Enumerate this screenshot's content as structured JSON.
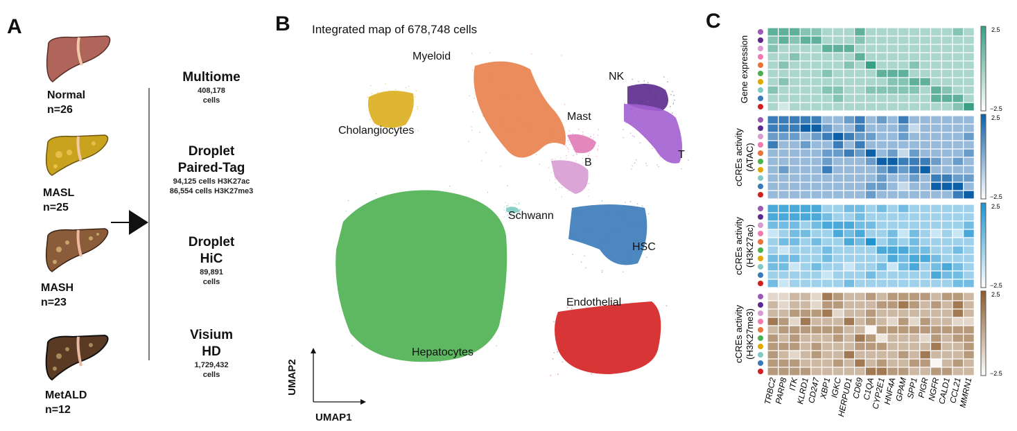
{
  "panel_a": {
    "letter": "A",
    "conditions": [
      {
        "name": "Normal",
        "n": "n=26",
        "color": "#b0655a"
      },
      {
        "name": "MASL",
        "n": "n=25",
        "color": "#c9a21e"
      },
      {
        "name": "MASH",
        "n": "n=23",
        "color": "#8a5c3a"
      },
      {
        "name": "MetALD",
        "n": "n=12",
        "color": "#5a3a22"
      }
    ],
    "methods": [
      {
        "title": "Multiome",
        "lines": [
          "408,178",
          "cells"
        ]
      },
      {
        "title": "Droplet Paired-Tag",
        "title_lines": [
          "Droplet",
          "Paired-Tag"
        ],
        "lines": [
          "94,125 cells H3K27ac",
          "86,554 cells H3K27me3"
        ]
      },
      {
        "title": "Droplet HiC",
        "title_lines": [
          "Droplet",
          "HiC"
        ],
        "lines": [
          "89,891",
          "cells"
        ]
      },
      {
        "title": "Visium HD",
        "title_lines": [
          "Visium",
          "HD"
        ],
        "lines": [
          "1,729,432",
          "cells"
        ]
      }
    ]
  },
  "panel_b": {
    "letter": "B",
    "title": "Integrated map of 678,748 cells",
    "xlabel": "UMAP1",
    "ylabel": "UMAP2",
    "clusters": [
      {
        "name": "Hepatocytes",
        "color": "#4caf50"
      },
      {
        "name": "Myeloid",
        "color": "#e8804a"
      },
      {
        "name": "Cholangiocytes",
        "color": "#dcae1d"
      },
      {
        "name": "NK",
        "color": "#5b2a8c"
      },
      {
        "name": "T",
        "color": "#a35fd0"
      },
      {
        "name": "Mast",
        "color": "#e07ab5"
      },
      {
        "name": "B",
        "color": "#d79bd0"
      },
      {
        "name": "Schwann",
        "color": "#7fcbc4"
      },
      {
        "name": "HSC",
        "color": "#3a7ab8"
      },
      {
        "name": "Endothelial",
        "color": "#d42020"
      }
    ]
  },
  "panel_c": {
    "letter": "C",
    "row_colors": [
      "#9b59b6",
      "#5b2a8c",
      "#d79bd0",
      "#ee7ab0",
      "#e8743b",
      "#4caf50",
      "#e0a800",
      "#7fcbc4",
      "#3a7ab8",
      "#d02020"
    ],
    "genes": [
      "TRBC2",
      "PARP8",
      "ITK",
      "KLRD1",
      "CD247",
      "XBP1",
      "IGKC",
      "HERPUD1",
      "CD69",
      "C1QA",
      "CYP2E1",
      "HNF4A",
      "GPAM",
      "SPP1",
      "PIGR",
      "NGFR",
      "CALD1",
      "CCL21",
      "MMRN1"
    ],
    "colorbar_max": "2.5",
    "colorbar_min": "−2.5",
    "heatmaps": [
      {
        "label_lines": [
          "Gene expression"
        ],
        "color": "#3a9f85",
        "values": [
          [
            1.5,
            1.5,
            1.5,
            0.5,
            0.5,
            -0.5,
            -0.5,
            -0.5,
            1.5,
            -0.5,
            -0.5,
            -0.5,
            -0.5,
            -0.5,
            -0.5,
            -0.5,
            -0.5,
            0.5,
            -0.5
          ],
          [
            0.5,
            1.5,
            0.5,
            1.5,
            1.5,
            -0.5,
            -0.5,
            -0.5,
            0.5,
            -0.5,
            -0.5,
            -0.5,
            -0.5,
            -0.5,
            -0.5,
            -0.5,
            -0.5,
            -0.5,
            -0.5
          ],
          [
            0.5,
            -0.5,
            -0.5,
            -0.5,
            -0.5,
            1.5,
            1.5,
            1.5,
            -0.5,
            -0.5,
            -0.5,
            -0.5,
            -0.5,
            -0.5,
            -0.5,
            -0.5,
            -0.5,
            -0.5,
            -0.5
          ],
          [
            -0.5,
            -0.5,
            0.5,
            -0.5,
            -0.5,
            -0.5,
            -0.5,
            -0.5,
            1.5,
            -0.5,
            -0.5,
            -0.5,
            -0.5,
            -0.5,
            -0.5,
            -0.5,
            -0.5,
            -0.5,
            -0.5
          ],
          [
            -0.5,
            0.5,
            -0.5,
            -0.5,
            -0.5,
            -0.5,
            -0.5,
            0.5,
            -0.5,
            2.5,
            -0.5,
            -0.5,
            -0.5,
            0.5,
            -0.5,
            -0.5,
            -0.5,
            -0.5,
            -0.5
          ],
          [
            -0.5,
            -0.5,
            -0.5,
            -0.5,
            -0.5,
            0.5,
            -0.5,
            -0.5,
            -0.5,
            -0.5,
            1.5,
            1.5,
            1.5,
            -0.5,
            -0.5,
            -0.5,
            -0.5,
            -0.5,
            -0.5
          ],
          [
            -0.5,
            0.5,
            -0.5,
            -0.5,
            -0.5,
            -0.5,
            -0.5,
            -0.5,
            -0.5,
            -0.5,
            -0.5,
            0.5,
            0.5,
            1.5,
            1.5,
            -0.5,
            -0.5,
            -0.5,
            -0.5
          ],
          [
            0.5,
            -0.5,
            -0.5,
            -0.5,
            -0.5,
            0.5,
            0.5,
            -0.5,
            -0.5,
            0.5,
            0.5,
            0.5,
            0.5,
            0.5,
            -0.5,
            1.5,
            0.5,
            -0.5,
            -0.5
          ],
          [
            -0.5,
            -0.5,
            -0.5,
            -0.5,
            -0.5,
            -0.5,
            0.5,
            -0.5,
            -0.5,
            -0.5,
            -0.5,
            -0.5,
            -0.5,
            -0.5,
            -0.5,
            1.5,
            1.5,
            1.5,
            -0.5
          ],
          [
            -0.5,
            -1.5,
            -0.5,
            -0.5,
            -0.5,
            -0.5,
            -0.5,
            -0.5,
            -0.5,
            -0.5,
            -0.5,
            -0.5,
            -0.5,
            -0.5,
            -0.5,
            -0.5,
            -0.5,
            0.5,
            2.5
          ]
        ]
      },
      {
        "label_lines": [
          "cCREs activity",
          "(ATAC)"
        ],
        "color": "#0d5fa8",
        "values": [
          [
            1.5,
            1.5,
            1.5,
            1.5,
            1.5,
            -0.5,
            -0.5,
            0.5,
            1.5,
            -0.5,
            0.5,
            -0.5,
            1.5,
            -0.5,
            -0.5,
            -0.5,
            -0.5,
            -0.5,
            -0.5
          ],
          [
            1.5,
            1.5,
            1.5,
            2.5,
            2.5,
            0.5,
            -0.5,
            -0.5,
            1.5,
            -0.5,
            -0.5,
            -0.5,
            0.5,
            -1.5,
            -0.5,
            -0.5,
            -0.5,
            -0.5,
            -0.5
          ],
          [
            0.5,
            0.5,
            0.5,
            -0.5,
            0.5,
            1.5,
            2.5,
            1.5,
            0.5,
            0.5,
            -0.5,
            -0.5,
            0.5,
            -0.5,
            -0.5,
            -0.5,
            -0.5,
            -0.5,
            0.5
          ],
          [
            1.5,
            -0.5,
            -0.5,
            0.5,
            -0.5,
            -0.5,
            1.5,
            -0.5,
            1.5,
            -0.5,
            -0.5,
            -0.5,
            -0.5,
            -0.5,
            -0.5,
            -0.5,
            -0.5,
            -0.5,
            -0.5
          ],
          [
            -0.5,
            -0.5,
            -0.5,
            -0.5,
            -0.5,
            0.5,
            0.5,
            1.5,
            0.5,
            2.5,
            -0.5,
            0.5,
            -1.5,
            0.5,
            -0.5,
            -0.5,
            -0.5,
            -0.5,
            0.5
          ],
          [
            -0.5,
            -0.5,
            -0.5,
            -0.5,
            -0.5,
            0.5,
            -0.5,
            -0.5,
            -0.5,
            0.5,
            2.5,
            2.5,
            1.5,
            1.5,
            1.5,
            0.5,
            -0.5,
            0.5,
            -0.5
          ],
          [
            -0.5,
            0.5,
            -0.5,
            -0.5,
            -0.5,
            1.5,
            -0.5,
            -0.5,
            -0.5,
            -0.5,
            0.5,
            1.5,
            0.5,
            1.5,
            2.5,
            -0.5,
            -0.5,
            -0.5,
            -0.5
          ],
          [
            -0.5,
            -0.5,
            -0.5,
            -0.5,
            -0.5,
            -0.5,
            -0.5,
            -0.5,
            -0.5,
            -0.5,
            0.5,
            -0.5,
            -0.5,
            0.5,
            -0.5,
            1.5,
            1.5,
            0.5,
            0.5
          ],
          [
            -0.5,
            -0.5,
            -0.5,
            -0.5,
            -0.5,
            -0.5,
            -0.5,
            -0.5,
            -0.5,
            0.5,
            0.5,
            -0.5,
            -1.5,
            -0.5,
            -0.5,
            2.5,
            2.5,
            2.5,
            -0.5
          ],
          [
            -0.5,
            -0.5,
            -0.5,
            -0.5,
            -0.5,
            -0.5,
            -0.5,
            -0.5,
            -0.5,
            0.5,
            -0.5,
            -0.5,
            -0.5,
            -0.5,
            -0.5,
            -0.5,
            -0.5,
            1.5,
            2.5
          ]
        ]
      },
      {
        "label_lines": [
          "cCREs activity",
          "(H3K27ac)"
        ],
        "color": "#1f95d0",
        "values": [
          [
            1.5,
            1.5,
            1.5,
            1.5,
            1.5,
            -0.5,
            -0.5,
            0.5,
            0.5,
            -0.5,
            0.5,
            -0.5,
            0.5,
            -0.5,
            -0.5,
            -0.5,
            -0.5,
            -0.5,
            -0.5
          ],
          [
            1.5,
            1.5,
            1.5,
            1.5,
            1.5,
            0.5,
            -0.5,
            -0.5,
            0.5,
            -0.5,
            -0.5,
            -0.5,
            -0.5,
            -0.5,
            -0.5,
            -0.5,
            -0.5,
            -0.5,
            -0.5
          ],
          [
            0.5,
            0.5,
            0.5,
            -0.5,
            0.5,
            1.5,
            1.5,
            1.5,
            0.5,
            0.5,
            -0.5,
            -0.5,
            -0.5,
            -0.5,
            -0.5,
            -0.5,
            -0.5,
            -0.5,
            0.5
          ],
          [
            -1.5,
            -0.5,
            0.5,
            0.5,
            -0.5,
            -0.5,
            1.5,
            0.5,
            1.5,
            -0.5,
            -0.5,
            0.5,
            -1.5,
            0.5,
            -0.5,
            -1.5,
            -0.5,
            -1.5,
            1.5
          ],
          [
            -0.5,
            0.5,
            0.5,
            -0.5,
            0.5,
            -0.5,
            -0.5,
            1.5,
            0.5,
            2.5,
            -0.5,
            0.5,
            -0.5,
            0.5,
            -0.5,
            -0.5,
            -0.5,
            -0.5,
            -0.5
          ],
          [
            -0.5,
            -1.5,
            -0.5,
            -0.5,
            -0.5,
            0.5,
            -0.5,
            -0.5,
            -0.5,
            -0.5,
            1.5,
            1.5,
            1.5,
            0.5,
            0.5,
            -0.5,
            -0.5,
            0.5,
            -0.5
          ],
          [
            0.5,
            0.5,
            0.5,
            -0.5,
            -0.5,
            0.5,
            -0.5,
            -0.5,
            -0.5,
            -0.5,
            -0.5,
            1.5,
            0.5,
            1.5,
            1.5,
            0.5,
            -0.5,
            -0.5,
            -0.5
          ],
          [
            0.5,
            0.5,
            -1.5,
            -0.5,
            0.5,
            -0.5,
            -0.5,
            -1.5,
            -0.5,
            -0.5,
            0.5,
            -1.5,
            0.5,
            1.5,
            -0.5,
            0.5,
            1.5,
            0.5,
            -0.5
          ],
          [
            -0.5,
            -0.5,
            -0.5,
            -0.5,
            -0.5,
            -1.5,
            -0.5,
            -0.5,
            -0.5,
            0.5,
            -0.5,
            -0.5,
            -0.5,
            -0.5,
            -0.5,
            1.5,
            0.5,
            0.5,
            -0.5
          ],
          [
            0.5,
            -1.5,
            -0.5,
            -0.5,
            -0.5,
            -0.5,
            -0.5,
            0.5,
            -0.5,
            -0.5,
            -0.5,
            -0.5,
            -0.5,
            -0.5,
            -0.5,
            -0.5,
            -0.5,
            0.5,
            0.5
          ]
        ]
      },
      {
        "label_lines": [
          "cCREs activity",
          "(H3K27me3)"
        ],
        "color": "#8b5a2b",
        "values": [
          [
            -1.5,
            -1.5,
            -0.5,
            -0.5,
            -1.5,
            1.5,
            0.5,
            -0.5,
            -0.5,
            0.5,
            -0.5,
            0.5,
            0.5,
            0.5,
            0.5,
            -0.5,
            0.5,
            0.5,
            -0.5
          ],
          [
            -0.5,
            -1.5,
            -0.5,
            -0.5,
            -1.5,
            0.5,
            0.5,
            -0.5,
            -0.5,
            -0.5,
            0.5,
            0.5,
            1.5,
            0.5,
            -0.5,
            0.5,
            -0.5,
            1.5,
            -0.5
          ],
          [
            -0.5,
            -0.5,
            0.5,
            0.5,
            0.5,
            1.5,
            -1.5,
            -0.5,
            -0.5,
            0.5,
            -0.5,
            -0.5,
            -0.5,
            -0.5,
            -0.5,
            -0.5,
            -0.5,
            1.5,
            -0.5
          ],
          [
            1.5,
            0.5,
            -1.5,
            1.5,
            -0.5,
            -0.5,
            -0.5,
            1.5,
            -0.5,
            0.5,
            -0.5,
            -1.5,
            0.5,
            -1.5,
            0.5,
            -0.5,
            -0.5,
            -1.5,
            -1.5
          ],
          [
            -0.5,
            0.5,
            0.5,
            0.5,
            0.5,
            0.5,
            0.5,
            -0.5,
            -0.5,
            -2.5,
            0.5,
            0.5,
            0.5,
            0.5,
            0.5,
            0.5,
            0.5,
            0.5,
            0.5
          ],
          [
            0.5,
            -0.5,
            0.5,
            -0.5,
            -0.5,
            -0.5,
            0.5,
            -0.5,
            1.5,
            0.5,
            -2.0,
            -0.5,
            -0.5,
            -0.5,
            -1.5,
            0.5,
            -0.5,
            0.5,
            0.5
          ],
          [
            0.5,
            0.5,
            0.5,
            -0.5,
            0.5,
            -0.5,
            -0.5,
            -0.5,
            0.5,
            0.5,
            0.5,
            -0.5,
            -0.5,
            -0.5,
            -0.5,
            1.5,
            -0.5,
            -0.5,
            0.5
          ],
          [
            0.5,
            -0.5,
            -1.5,
            -0.5,
            0.5,
            -0.5,
            -0.5,
            1.5,
            -0.5,
            -0.5,
            -0.5,
            -0.5,
            0.5,
            -0.5,
            1.5,
            -0.5,
            -0.5,
            -0.5,
            0.5
          ],
          [
            0.5,
            0.5,
            0.5,
            -0.5,
            -0.5,
            -0.5,
            0.5,
            -0.5,
            1.5,
            -0.5,
            0.5,
            -0.5,
            -0.5,
            0.5,
            0.5,
            -2.5,
            -0.5,
            0.5,
            -0.5
          ],
          [
            0.5,
            0.5,
            0.5,
            0.5,
            -0.5,
            -0.5,
            -0.5,
            -0.5,
            -0.5,
            1.5,
            1.5,
            0.5,
            0.5,
            -0.5,
            -0.5,
            0.5,
            0.5,
            -0.5,
            -0.5
          ]
        ]
      }
    ]
  }
}
